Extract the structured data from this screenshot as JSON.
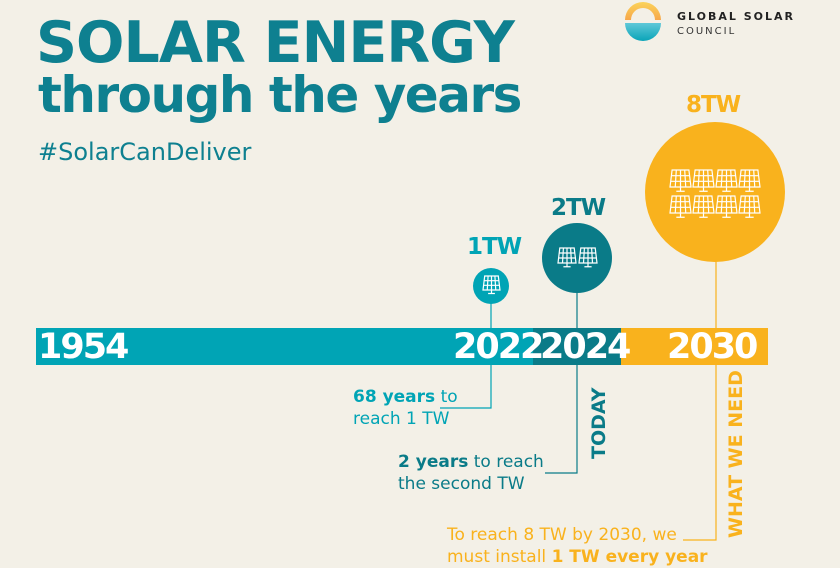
{
  "logo": {
    "line1": "GLOBAL SOLAR",
    "line2": "COUNCIL"
  },
  "title": {
    "line1": "SOLAR ENERGY",
    "line2": "through the years"
  },
  "hashtag": "#SolarCanDeliver",
  "colors": {
    "background": "#f3f0e7",
    "teal": "#00a4b5",
    "dark_teal": "#0a7b88",
    "orange": "#f9b21d",
    "title": "#0e8090"
  },
  "timeline": {
    "years": [
      "1954",
      "2022",
      "2024",
      "2030"
    ]
  },
  "milestones": [
    {
      "label": "1TW",
      "panels": 1,
      "icon": "solar-panel-icon"
    },
    {
      "label": "2TW",
      "panels": 2,
      "icon": "solar-panel-icon"
    },
    {
      "label": "8TW",
      "panels": 8,
      "icon": "solar-panel-icon"
    }
  ],
  "notes": {
    "n1_bold": "68 years",
    "n1_rest": " to",
    "n1_line2": "reach 1 TW",
    "n2_bold": "2 years",
    "n2_rest": " to reach",
    "n2_line2": "the second TW",
    "n3_line1": "To reach 8 TW by 2030, we",
    "n3_pre": "must install ",
    "n3_bold": "1 TW every year"
  },
  "vertical_labels": {
    "today": "TODAY",
    "need": "WHAT WE NEED"
  }
}
